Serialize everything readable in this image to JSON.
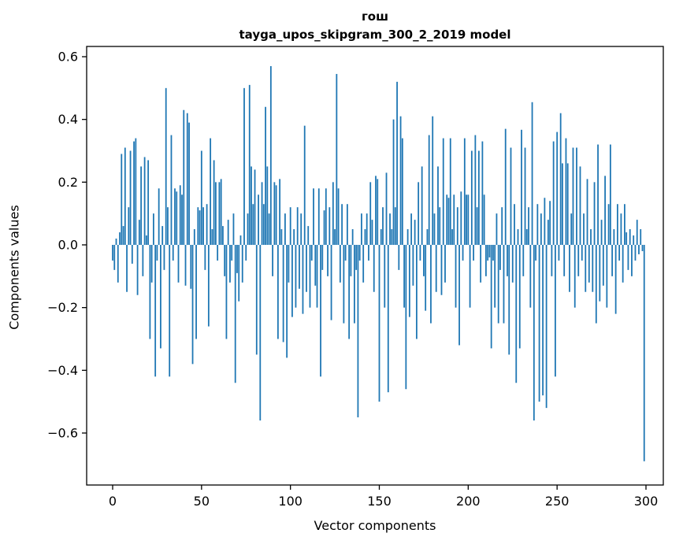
{
  "chart_data": {
    "type": "bar",
    "title": "гош",
    "subtitle": "tayga_upos_skipgram_300_2_2019 model",
    "xlabel": "Vector components",
    "ylabel": "Components values",
    "bar_color": "#1f77b4",
    "x_ticks": [
      0,
      50,
      100,
      150,
      200,
      250,
      300
    ],
    "y_ticks": [
      "0.6",
      "0.4",
      "0.2",
      "0.0",
      "−0.2",
      "−0.4",
      "−0.6"
    ],
    "xlim": [
      -15,
      315
    ],
    "ylim": [
      -0.75,
      0.63
    ],
    "grid": false,
    "legend": "none",
    "values": [
      -0.05,
      -0.08,
      0.02,
      -0.12,
      0.04,
      0.29,
      0.06,
      0.31,
      -0.15,
      0.12,
      0.3,
      -0.06,
      0.33,
      0.34,
      -0.16,
      0.08,
      0.25,
      -0.1,
      0.28,
      0.03,
      0.27,
      -0.3,
      -0.12,
      0.1,
      -0.42,
      -0.05,
      0.18,
      -0.33,
      0.06,
      -0.08,
      0.5,
      0.12,
      -0.42,
      0.35,
      -0.05,
      0.18,
      0.17,
      -0.12,
      0.19,
      0.16,
      0.43,
      -0.13,
      0.42,
      0.39,
      -0.14,
      -0.38,
      0.05,
      -0.3,
      0.12,
      0.11,
      0.3,
      0.12,
      -0.08,
      0.13,
      -0.26,
      0.34,
      0.05,
      0.27,
      0.2,
      -0.05,
      0.2,
      0.21,
      0.06,
      -0.1,
      -0.3,
      0.08,
      -0.12,
      -0.05,
      0.1,
      -0.44,
      -0.09,
      -0.18,
      0.03,
      -0.12,
      0.5,
      -0.05,
      0.1,
      0.51,
      0.25,
      0.13,
      0.24,
      -0.35,
      0.16,
      -0.56,
      0.2,
      0.13,
      0.44,
      0.25,
      0.1,
      0.57,
      -0.1,
      0.2,
      0.19,
      -0.3,
      0.21,
      0.05,
      -0.31,
      0.1,
      -0.36,
      -0.12,
      0.12,
      -0.23,
      0.05,
      -0.2,
      0.12,
      -0.14,
      0.1,
      -0.22,
      0.38,
      -0.15,
      0.06,
      -0.2,
      -0.05,
      0.18,
      -0.13,
      -0.2,
      0.18,
      -0.42,
      -0.08,
      0.11,
      0.18,
      -0.1,
      0.12,
      -0.24,
      0.2,
      0.05,
      0.545,
      0.18,
      -0.12,
      0.13,
      -0.25,
      -0.05,
      0.13,
      -0.3,
      -0.1,
      0.05,
      -0.25,
      -0.08,
      -0.55,
      -0.05,
      0.1,
      -0.12,
      0.05,
      0.1,
      -0.05,
      0.2,
      0.08,
      -0.15,
      0.22,
      0.21,
      -0.5,
      0.05,
      0.12,
      -0.2,
      0.23,
      -0.47,
      0.1,
      0.05,
      0.4,
      0.12,
      0.52,
      -0.08,
      0.41,
      0.34,
      -0.2,
      -0.46,
      0.05,
      -0.23,
      0.1,
      -0.13,
      0.08,
      -0.3,
      0.2,
      -0.05,
      0.25,
      -0.1,
      -0.21,
      0.05,
      0.35,
      -0.25,
      0.41,
      0.1,
      -0.15,
      0.25,
      0.12,
      -0.16,
      0.34,
      -0.12,
      0.16,
      0.15,
      0.34,
      0.05,
      0.16,
      -0.2,
      0.12,
      -0.32,
      0.17,
      -0.05,
      0.34,
      0.16,
      0.16,
      -0.2,
      0.3,
      -0.05,
      0.35,
      0.12,
      0.3,
      -0.12,
      0.33,
      0.16,
      -0.1,
      -0.05,
      -0.04,
      -0.33,
      -0.05,
      -0.2,
      0.1,
      -0.25,
      -0.08,
      0.12,
      -0.25,
      0.37,
      -0.1,
      -0.35,
      0.31,
      -0.12,
      0.13,
      -0.44,
      0.05,
      -0.33,
      0.367,
      -0.1,
      0.31,
      0.05,
      0.12,
      -0.2,
      0.455,
      -0.56,
      -0.05,
      0.13,
      -0.5,
      0.1,
      -0.48,
      0.15,
      -0.52,
      0.08,
      0.14,
      -0.1,
      0.33,
      -0.42,
      0.36,
      -0.05,
      0.42,
      0.26,
      -0.1,
      0.34,
      0.26,
      -0.15,
      0.1,
      0.31,
      -0.2,
      0.31,
      -0.1,
      0.25,
      -0.05,
      0.1,
      -0.15,
      0.21,
      -0.12,
      0.05,
      -0.15,
      0.2,
      -0.25,
      0.32,
      -0.18,
      0.08,
      -0.13,
      0.22,
      -0.2,
      0.13,
      0.32,
      -0.1,
      0.05,
      -0.22,
      0.13,
      -0.05,
      0.1,
      -0.12,
      0.13,
      0.04,
      -0.08,
      0.05,
      -0.1,
      0.03,
      -0.05,
      0.08,
      -0.03,
      0.05,
      -0.02,
      -0.69
    ]
  }
}
